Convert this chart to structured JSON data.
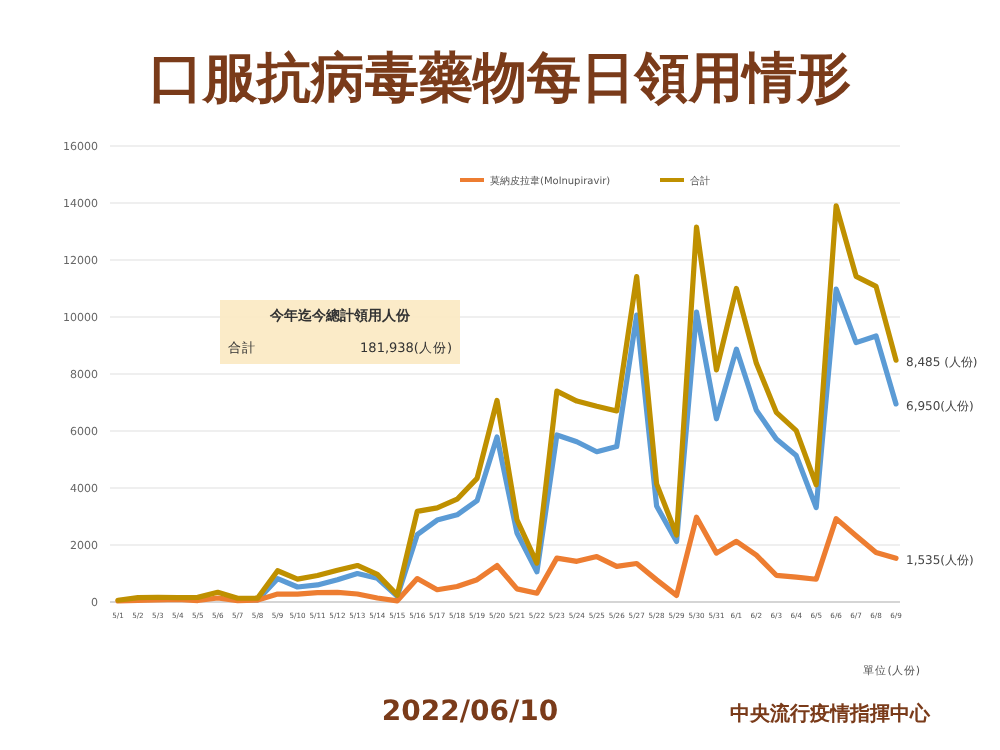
{
  "chart_data": {
    "type": "line",
    "title": "口服抗病毒藥物每日領用情形",
    "categories": [
      "5/1",
      "5/2",
      "5/3",
      "5/4",
      "5/5",
      "5/6",
      "5/7",
      "5/8",
      "5/9",
      "5/10",
      "5/11",
      "5/12",
      "5/13",
      "5/14",
      "5/15",
      "5/16",
      "5/17",
      "5/18",
      "5/19",
      "5/20",
      "5/21",
      "5/22",
      "5/23",
      "5/24",
      "5/25",
      "5/26",
      "5/27",
      "5/28",
      "5/29",
      "5/30",
      "5/31",
      "6/1",
      "6/2",
      "6/3",
      "6/4",
      "6/5",
      "6/6",
      "6/7",
      "6/8",
      "6/9"
    ],
    "series": [
      {
        "color": "#5b9bd5",
        "values": [
          null,
          null,
          null,
          null,
          null,
          null,
          81,
          70,
          819,
          526,
          598,
          782,
          1000,
          830,
          198,
          2361,
          2874,
          3061,
          3555,
          5790,
          2420,
          1060,
          5860,
          5622,
          5272,
          5453,
          10066,
          3367,
          2120,
          10176,
          6430,
          8872,
          6728,
          5719,
          5138,
          3313,
          10976,
          9102,
          9336,
          6950
        ],
        "value_labels": [
          null,
          null,
          null,
          null,
          null,
          null,
          null,
          null,
          null,
          null,
          null,
          null,
          null,
          null,
          null,
          null,
          null,
          null,
          null,
          null,
          null,
          null,
          null,
          null,
          null,
          null,
          null,
          null,
          null,
          null,
          null,
          null,
          null,
          null,
          null,
          null,
          null,
          null,
          null,
          "6,950(人份)"
        ]
      },
      {
        "name": "莫納皮拉韋(Molnupiravir)",
        "color": "#ed7d31",
        "values": [
          39,
          53,
          71,
          90,
          51,
          141,
          50,
          66,
          278,
          278,
          332,
          335,
          281,
          140,
          42,
          821,
          430,
          545,
          781,
          1280,
          460,
          307,
          1541,
          1427,
          1594,
          1251,
          1351,
          776,
          232,
          2977,
          1715,
          2129,
          1646,
          937,
          875,
          798,
          2926,
          2325,
          1740,
          1535
        ],
        "value_labels": [
          null,
          null,
          null,
          null,
          null,
          null,
          null,
          null,
          null,
          null,
          null,
          null,
          null,
          null,
          null,
          null,
          null,
          null,
          null,
          null,
          null,
          null,
          null,
          null,
          null,
          null,
          null,
          null,
          null,
          null,
          null,
          null,
          null,
          null,
          null,
          null,
          null,
          null,
          null,
          "1,535(人份)"
        ]
      },
      {
        "name": "合計",
        "color": "#bf9000",
        "values": [
          62,
          153,
          166,
          150,
          162,
          340,
          131,
          136,
          1097,
          804,
          930,
          1117,
          1281,
          970,
          240,
          3182,
          3304,
          3606,
          4336,
          7070,
          2880,
          1367,
          7401,
          7049,
          6866,
          6704,
          11417,
          4143,
          2352,
          13153,
          8145,
          11001,
          8374,
          6656,
          6013,
          4111,
          13902,
          11427,
          11076,
          8485
        ],
        "value_labels": [
          null,
          null,
          null,
          null,
          null,
          null,
          null,
          null,
          null,
          null,
          null,
          null,
          null,
          null,
          null,
          null,
          null,
          null,
          null,
          null,
          null,
          null,
          null,
          null,
          null,
          null,
          null,
          null,
          null,
          null,
          null,
          null,
          null,
          null,
          null,
          null,
          null,
          null,
          null,
          "8,485 (人份)"
        ]
      }
    ],
    "ylim": [
      0,
      16000
    ],
    "yticks": [
      0,
      2000,
      4000,
      6000,
      8000,
      10000,
      12000,
      14000,
      16000
    ],
    "grid": "y",
    "legend": "top",
    "marker": "none",
    "annotations": [
      "今年迄今總計領用人份",
      "合計",
      "181,938(人份)",
      "單位(人份)",
      "2022/06/10",
      "中央流行疫情指揮中心"
    ]
  }
}
